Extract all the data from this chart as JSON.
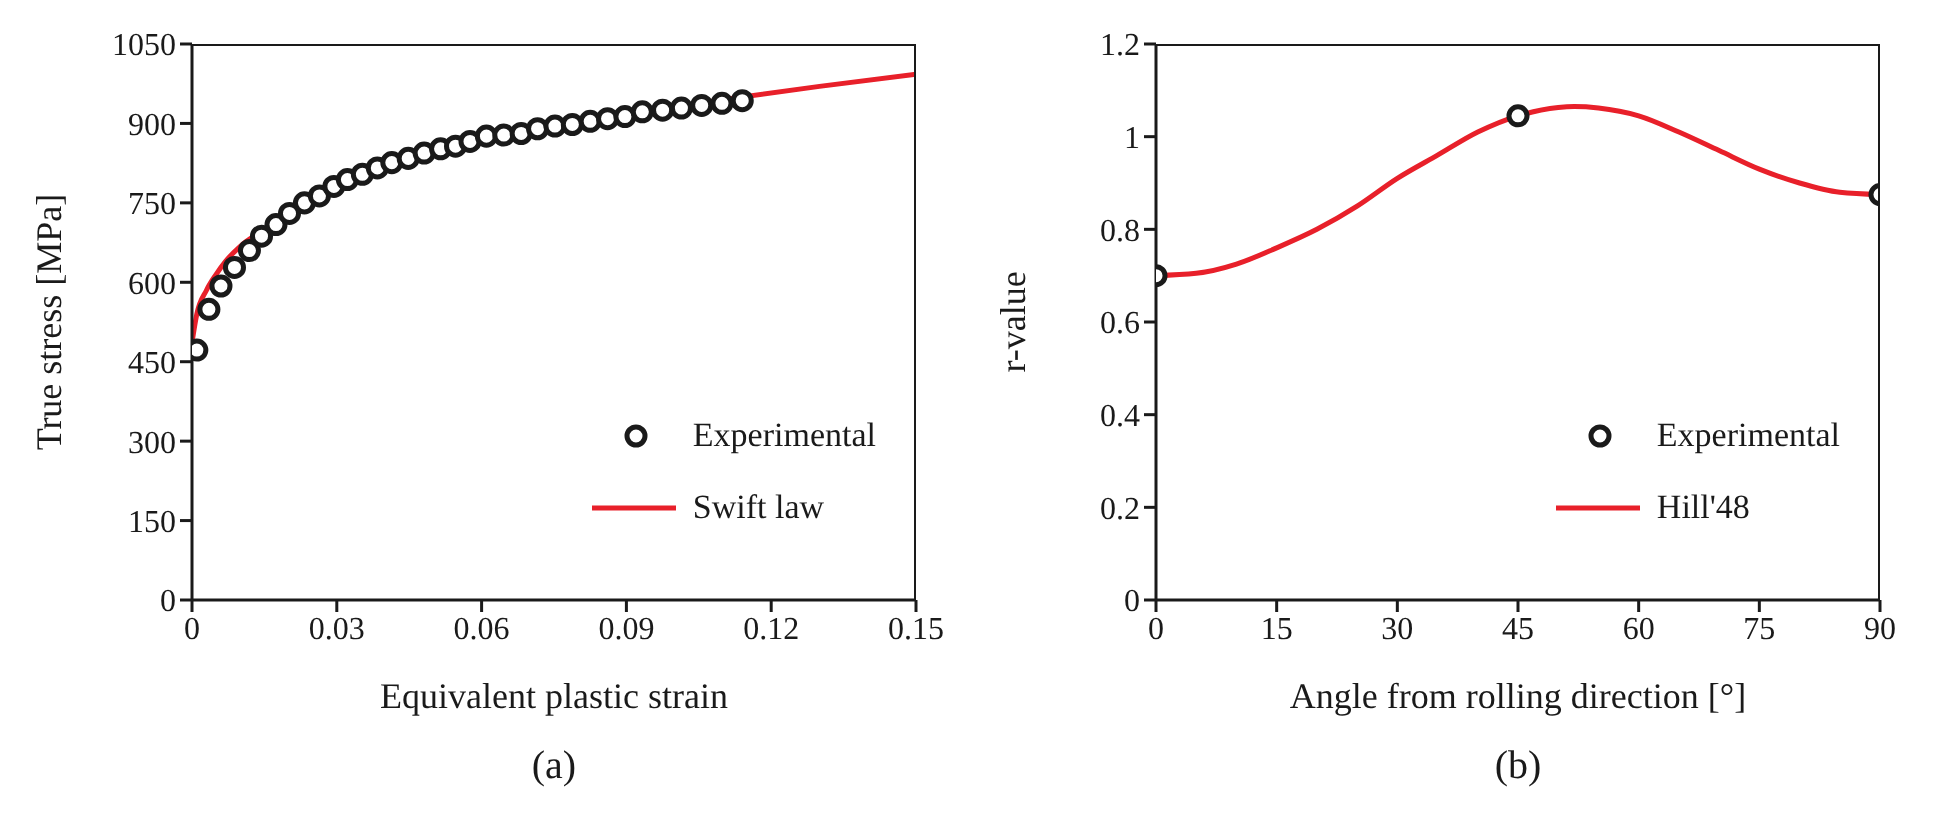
{
  "chart_data": [
    {
      "type": "scatter",
      "xlabel": "Equivalent plastic strain",
      "ylabel": "True stress [MPa]",
      "xlim": [
        0,
        0.15
      ],
      "xticks": [
        0,
        0.03,
        0.06,
        0.09,
        0.12,
        0.15
      ],
      "ylim": [
        0,
        1050
      ],
      "yticks": [
        0,
        150,
        300,
        450,
        600,
        750,
        900,
        1050
      ],
      "grid": false,
      "legend": "bottom right",
      "annotations": [
        "(a)"
      ],
      "series": [
        {
          "name": "Experimental",
          "type": "scatter",
          "marker": "circle",
          "color": "#1a1a1a",
          "x": [
            0.001,
            0.0035,
            0.006,
            0.0088,
            0.0119,
            0.0144,
            0.0174,
            0.0202,
            0.0233,
            0.0264,
            0.0294,
            0.0322,
            0.0353,
            0.0384,
            0.0414,
            0.0448,
            0.0481,
            0.0515,
            0.0546,
            0.0576,
            0.061,
            0.0646,
            0.0682,
            0.0716,
            0.0752,
            0.0788,
            0.0825,
            0.0861,
            0.0897,
            0.0933,
            0.0975,
            0.1014,
            0.1056,
            0.1098,
            0.114
          ],
          "values": [
            472,
            549,
            593,
            628,
            660,
            687,
            709,
            730,
            750,
            763,
            781,
            794,
            804,
            816,
            826,
            834,
            844,
            852,
            857,
            866,
            876,
            878,
            881,
            890,
            895,
            898,
            904,
            909,
            913,
            922,
            925,
            929,
            934,
            938,
            943
          ]
        },
        {
          "name": "Swift law",
          "type": "line",
          "marker": "none",
          "color": "#e8202a",
          "x": [
            0,
            0.001,
            0.003,
            0.005,
            0.007,
            0.01,
            0.015,
            0.02,
            0.03,
            0.04,
            0.05,
            0.06,
            0.07,
            0.09,
            0.11,
            0.13,
            0.15
          ],
          "values": [
            486,
            540,
            585,
            615,
            640,
            668,
            700,
            735,
            785,
            815,
            848,
            870,
            888,
            918,
            945,
            970,
            993
          ]
        }
      ]
    },
    {
      "type": "scatter",
      "xlabel": "Angle from rolling direction [°]",
      "ylabel": "r-value",
      "xlim": [
        0,
        90
      ],
      "xticks": [
        0,
        15,
        30,
        45,
        60,
        75,
        90
      ],
      "ylim": [
        0,
        1.2
      ],
      "yticks": [
        0,
        0.2,
        0.4,
        0.6,
        0.8,
        1,
        1.2
      ],
      "grid": false,
      "legend": "bottom right",
      "annotations": [
        "(b)"
      ],
      "series": [
        {
          "name": "Experimental",
          "type": "scatter",
          "marker": "circle",
          "color": "#1a1a1a",
          "x": [
            0,
            45,
            90
          ],
          "values": [
            0.7,
            1.045,
            0.875
          ]
        },
        {
          "name": "Hill'48",
          "type": "line",
          "marker": "none",
          "color": "#e8202a",
          "x": [
            0,
            5,
            10,
            15,
            20,
            25,
            30,
            35,
            40,
            45,
            50,
            52,
            55,
            60,
            65,
            70,
            75,
            80,
            85,
            90
          ],
          "values": [
            0.7,
            0.705,
            0.725,
            0.76,
            0.8,
            0.85,
            0.91,
            0.96,
            1.01,
            1.045,
            1.063,
            1.065,
            1.062,
            1.045,
            1.01,
            0.97,
            0.93,
            0.9,
            0.88,
            0.875
          ]
        }
      ]
    }
  ]
}
